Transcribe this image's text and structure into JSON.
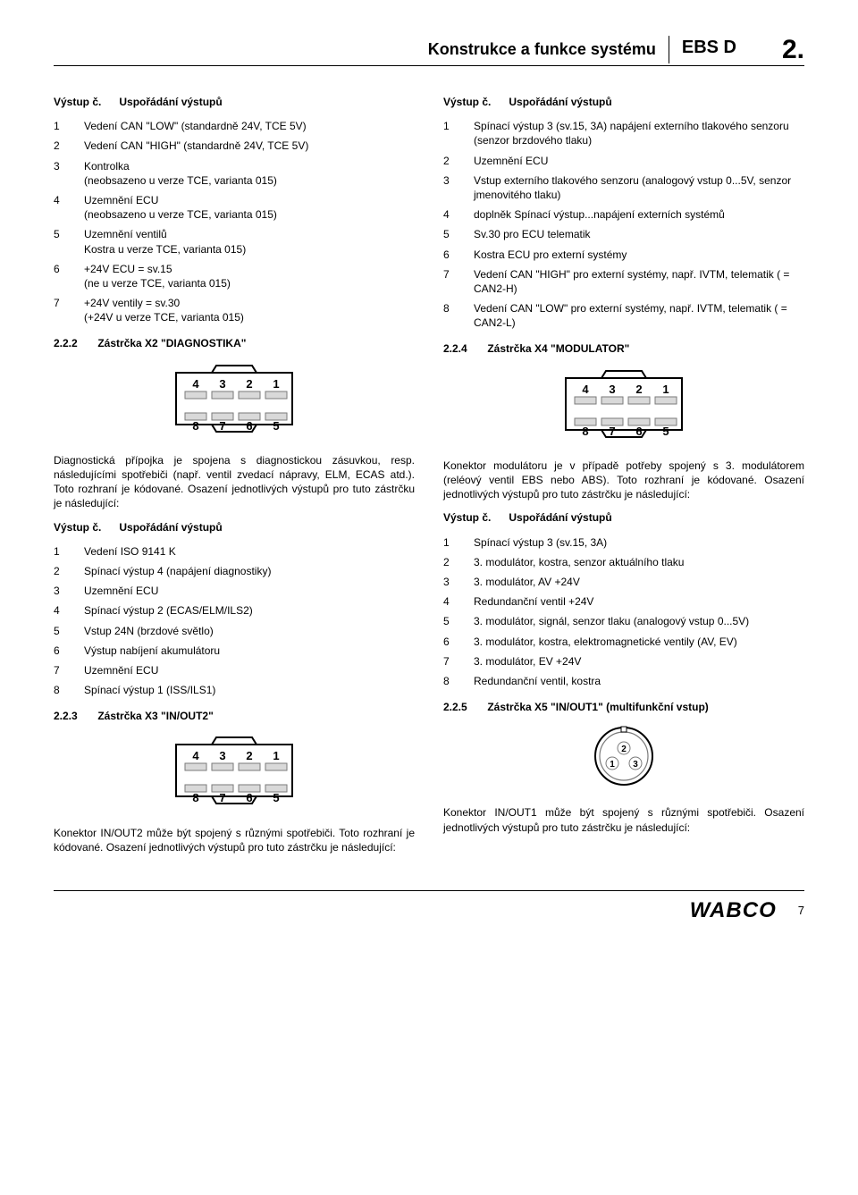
{
  "header": {
    "left": "Konstrukce a funkce systému",
    "mid": "EBS D",
    "right": "2."
  },
  "left_col": {
    "h1_a": "Výstup č.",
    "h1_b": "Uspořádání výstupů",
    "pins1": [
      {
        "n": "1",
        "d": "Vedení CAN \"LOW\" (standardně 24V, TCE 5V)"
      },
      {
        "n": "2",
        "d": "Vedení CAN \"HIGH\" (standardně 24V, TCE 5V)"
      },
      {
        "n": "3",
        "d": "Kontrolka\n(neobsazeno u verze TCE, varianta 015)"
      },
      {
        "n": "4",
        "d": "Uzemnění ECU\n(neobsazeno u verze TCE, varianta 015)"
      },
      {
        "n": "5",
        "d": "Uzemnění ventilů\nKostra u verze TCE, varianta 015)"
      },
      {
        "n": "6",
        "d": "+24V ECU = sv.15\n(ne u verze TCE, varianta 015)"
      },
      {
        "n": "7",
        "d": "+24V ventily = sv.30\n(+24V u verze TCE, varianta 015)"
      }
    ],
    "s1_num": "2.2.2",
    "s1_title": "Zástrčka X2 \"DIAGNOSTIKA\"",
    "para1": "Diagnostická přípojka je spojena s diagnostickou zásuvkou, resp. následujícími spotřebiči (např. ventil zvedací nápravy, ELM, ECAS atd.). Toto rozhraní je kódované. Osazení jednotlivých výstupů pro tuto zástrčku je následující:",
    "h2_a": "Výstup č.",
    "h2_b": "Uspořádání výstupů",
    "pins2": [
      {
        "n": "1",
        "d": "Vedení ISO 9141 K"
      },
      {
        "n": "2",
        "d": "Spínací výstup 4 (napájení diagnostiky)"
      },
      {
        "n": "3",
        "d": "Uzemnění ECU"
      },
      {
        "n": "4",
        "d": "Spínací výstup 2 (ECAS/ELM/ILS2)"
      },
      {
        "n": "5",
        "d": "Vstup 24N (brzdové světlo)"
      },
      {
        "n": "6",
        "d": "Výstup nabíjení akumulátoru"
      },
      {
        "n": "7",
        "d": "Uzemnění ECU"
      },
      {
        "n": "8",
        "d": "Spínací výstup 1 (ISS/ILS1)"
      }
    ],
    "s2_num": "2.2.3",
    "s2_title": "Zástrčka X3 \"IN/OUT2\"",
    "para2": "Konektor IN/OUT2 může být spojený s různými spotřebiči. Toto rozhraní je kódované. Osazení jednotlivých výstupů pro tuto zástrčku je následující:"
  },
  "right_col": {
    "h1_a": "Výstup č.",
    "h1_b": "Uspořádání výstupů",
    "pins1": [
      {
        "n": "1",
        "d": "Spínací výstup 3 (sv.15, 3A) napájení externího tlakového senzoru (senzor brzdového tlaku)"
      },
      {
        "n": "2",
        "d": "Uzemnění ECU"
      },
      {
        "n": "3",
        "d": "Vstup externího tlakového senzoru (analogový vstup 0...5V, senzor jmenovitého tlaku)"
      },
      {
        "n": "4",
        "d": "doplněk Spínací výstup...napájení externích systémů"
      },
      {
        "n": "5",
        "d": "Sv.30 pro ECU telematik"
      },
      {
        "n": "6",
        "d": "Kostra ECU pro externí systémy"
      },
      {
        "n": "7",
        "d": "Vedení CAN \"HIGH\" pro externí systémy, např. IVTM, telematik ( = CAN2-H)"
      },
      {
        "n": "8",
        "d": "Vedení CAN \"LOW\" pro externí systémy, např. IVTM, telematik ( = CAN2-L)"
      }
    ],
    "s1_num": "2.2.4",
    "s1_title": "Zástrčka X4 \"MODULATOR\"",
    "para1": "Konektor modulátoru je v případě potřeby spojený s 3. modulátorem (reléový ventil EBS nebo ABS). Toto rozhraní je kódované. Osazení jednotlivých výstupů pro tuto zástrčku je následující:",
    "h2_a": "Výstup č.",
    "h2_b": "Uspořádání výstupů",
    "pins2": [
      {
        "n": "1",
        "d": "Spínací výstup 3 (sv.15, 3A)"
      },
      {
        "n": "2",
        "d": "3. modulátor, kostra, senzor aktuálního tlaku"
      },
      {
        "n": "3",
        "d": "3. modulátor, AV +24V"
      },
      {
        "n": "4",
        "d": "Redundanční ventil +24V"
      },
      {
        "n": "5",
        "d": "3. modulátor, signál, senzor tlaku (analogový vstup 0...5V)"
      },
      {
        "n": "6",
        "d": "3. modulátor, kostra, elektromagnetické ventily (AV, EV)"
      },
      {
        "n": "7",
        "d": "3. modulátor, EV +24V"
      },
      {
        "n": "8",
        "d": "Redundanční ventil, kostra"
      }
    ],
    "s2_num": "2.2.5",
    "s2_title": "Zástrčka X5 \"IN/OUT1\" (multifunkční vstup)",
    "para2": "Konektor IN/OUT1 může být spojený s různými spotřebiči. Osazení jednotlivých výstupů pro tuto zástrčku je následující:"
  },
  "connector8": {
    "top": [
      "4",
      "3",
      "2",
      "1"
    ],
    "bottom": [
      "8",
      "7",
      "6",
      "5"
    ],
    "width": 150,
    "height": 86,
    "outer_stroke": "#000",
    "fill": "#fff",
    "pin_stroke": "#7a7a7a",
    "pin_fill": "#d9d9d9"
  },
  "round_connector": {
    "labels": [
      "1",
      "2",
      "3"
    ],
    "diameter": 64,
    "outer_stroke": "#000",
    "inner_stroke": "#7a7a7a"
  },
  "footer": {
    "brand": "WABCO",
    "page": "7"
  }
}
